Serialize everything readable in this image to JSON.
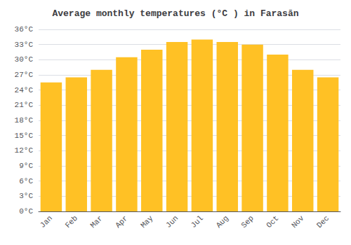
{
  "chart_data": {
    "type": "bar",
    "title": "Average monthly temperatures (°C ) in Farasān",
    "categories": [
      "Jan",
      "Feb",
      "Mar",
      "Apr",
      "May",
      "Jun",
      "Jul",
      "Aug",
      "Sep",
      "Oct",
      "Nov",
      "Dec"
    ],
    "values": [
      25.5,
      26.5,
      28.0,
      30.5,
      32.0,
      33.5,
      34.0,
      33.5,
      33.0,
      31.0,
      28.0,
      26.5
    ],
    "color": "#FFC125",
    "ylim": [
      0,
      36
    ],
    "yticks": [
      {
        "value": 0,
        "label": "0°C"
      },
      {
        "value": 3,
        "label": "3°C"
      },
      {
        "value": 6,
        "label": "6°C"
      },
      {
        "value": 9,
        "label": "9°C"
      },
      {
        "value": 12,
        "label": "12°C"
      },
      {
        "value": 15,
        "label": "15°C"
      },
      {
        "value": 18,
        "label": "18°C"
      },
      {
        "value": 21,
        "label": "21°C"
      },
      {
        "value": 24,
        "label": "24°C"
      },
      {
        "value": 27,
        "label": "27°C"
      },
      {
        "value": 30,
        "label": "30°C"
      },
      {
        "value": 33,
        "label": "33°C"
      },
      {
        "value": 36,
        "label": "36°C"
      }
    ],
    "grid": true
  }
}
